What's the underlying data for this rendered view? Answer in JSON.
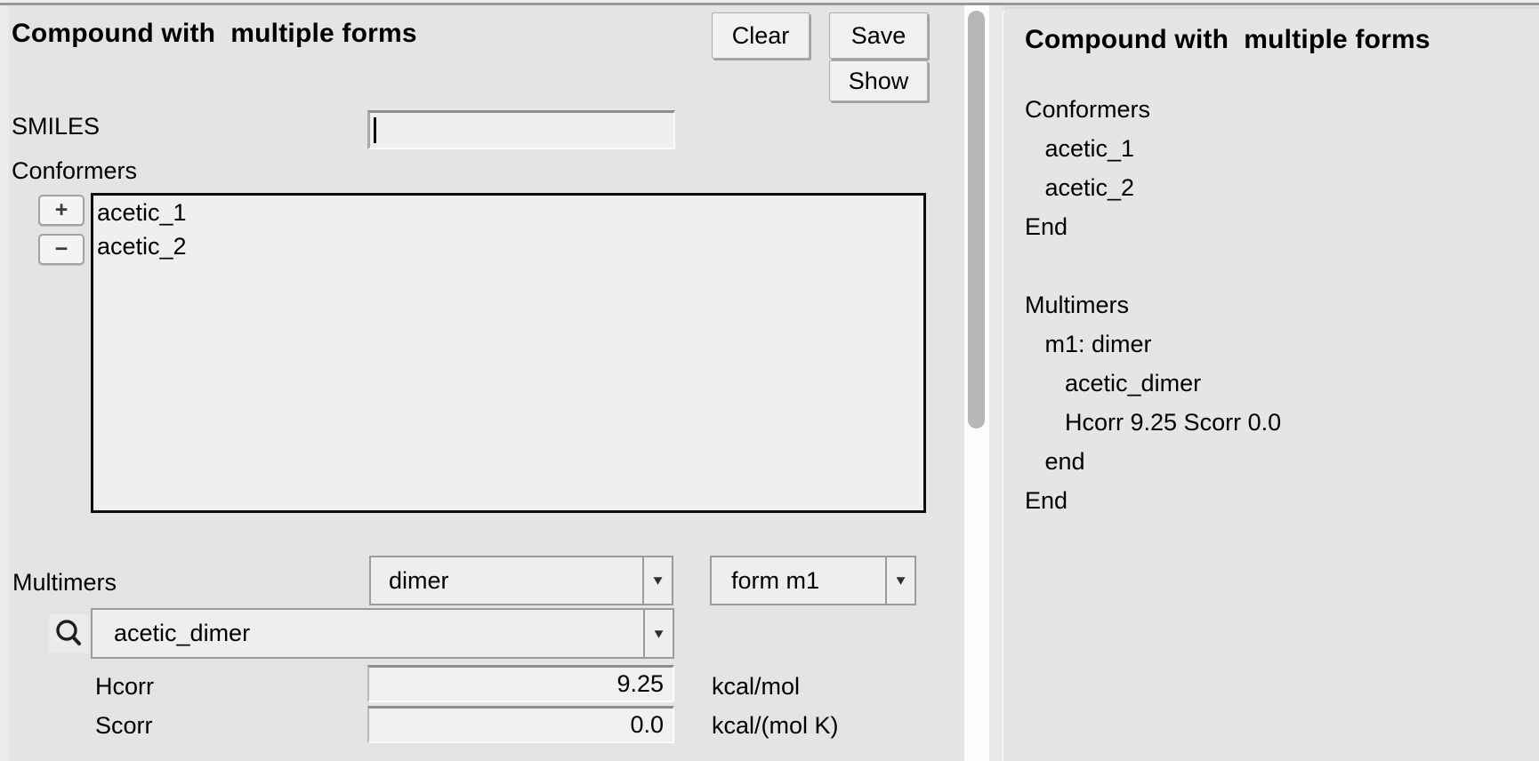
{
  "left_panel": {
    "title": "Compound with  multiple forms",
    "buttons": {
      "clear": "Clear",
      "save": "Save",
      "show": "Show"
    },
    "smiles": {
      "label": "SMILES",
      "value": ""
    },
    "conformers": {
      "label": "Conformers",
      "add_label": "+",
      "remove_label": "−",
      "items": [
        "acetic_1",
        "acetic_2"
      ]
    },
    "multimers": {
      "label": "Multimers",
      "type_value": "dimer",
      "form_value": "form m1",
      "conformer_value": "acetic_dimer",
      "hcorr": {
        "label": "Hcorr",
        "value": "9.25",
        "unit": "kcal/mol"
      },
      "scorr": {
        "label": "Scorr",
        "value": "0.0",
        "unit": "kcal/(mol K)"
      }
    }
  },
  "preview_panel": {
    "title": "Compound with  multiple forms",
    "lines": [
      "Conformers",
      "   acetic_1",
      "   acetic_2",
      "End",
      "",
      "Multimers",
      "   m1: dimer",
      "      acetic_dimer",
      "      Hcorr 9.25 Scorr 0.0",
      "   end",
      "End"
    ]
  },
  "icons": {
    "search_icon": "magnifying-glass",
    "dropdown_arrow": "▼"
  }
}
